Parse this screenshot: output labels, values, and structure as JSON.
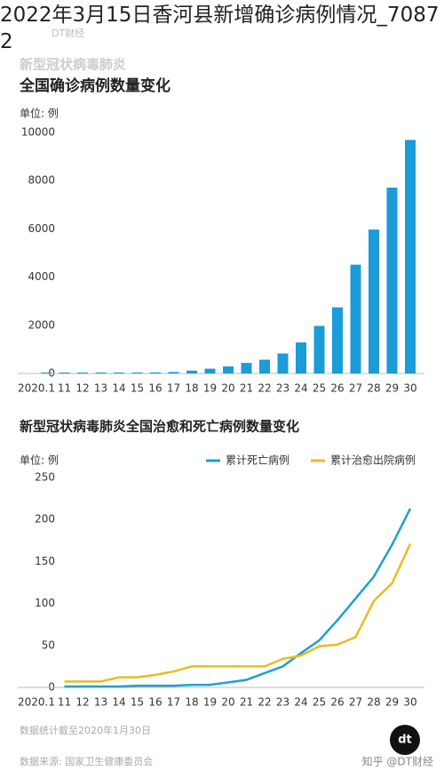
{
  "overlay_title": "2022年3月15日香河县新增确诊病例情况_70872",
  "brand": "DT财经",
  "chart_data": [
    {
      "type": "bar",
      "supertitle": "新型冠状病毒肺炎",
      "title": "全国确诊病例数量变化",
      "unit": "单位: 例",
      "categories": [
        "2020.1",
        "11",
        "12",
        "13",
        "14",
        "15",
        "16",
        "17",
        "18",
        "19",
        "20",
        "21",
        "22",
        "23",
        "24",
        "25",
        "26",
        "27",
        "28",
        "29",
        "30"
      ],
      "values": [
        41,
        41,
        41,
        41,
        41,
        41,
        45,
        62,
        121,
        198,
        291,
        440,
        571,
        830,
        1287,
        1975,
        2744,
        4515,
        5974,
        7711,
        9692
      ],
      "color": "#1b9bd7",
      "ylim": [
        0,
        10000
      ],
      "yticks": [
        0,
        2000,
        4000,
        6000,
        8000,
        10000
      ],
      "grid": false
    },
    {
      "type": "line",
      "title": "新型冠状病毒肺炎全国治愈和死亡病例数量变化",
      "unit": "单位: 例",
      "categories": [
        "2020.1",
        "11",
        "12",
        "13",
        "14",
        "15",
        "16",
        "17",
        "18",
        "19",
        "20",
        "21",
        "22",
        "23",
        "24",
        "25",
        "26",
        "27",
        "28",
        "29",
        "30"
      ],
      "series": [
        {
          "name": "累计死亡病例",
          "color": "#1fa0cf",
          "values": [
            null,
            1,
            1,
            1,
            1,
            2,
            2,
            2,
            3,
            3,
            6,
            9,
            17,
            25,
            41,
            56,
            80,
            106,
            132,
            170,
            213
          ]
        },
        {
          "name": "累计治愈出院病例",
          "color": "#e6bd1f",
          "values": [
            null,
            7,
            7,
            7,
            12,
            12,
            15,
            19,
            25,
            25,
            25,
            25,
            25,
            34,
            38,
            49,
            51,
            60,
            103,
            124,
            171
          ]
        }
      ],
      "ylim": [
        0,
        250
      ],
      "yticks": [
        0,
        50,
        100,
        150,
        200,
        250
      ],
      "grid": false
    }
  ],
  "footnotes": [
    "数据统计截至2020年1月30日",
    "数据来源: 国家卫生健康委员会"
  ],
  "watermark": "知乎 @DT财经"
}
